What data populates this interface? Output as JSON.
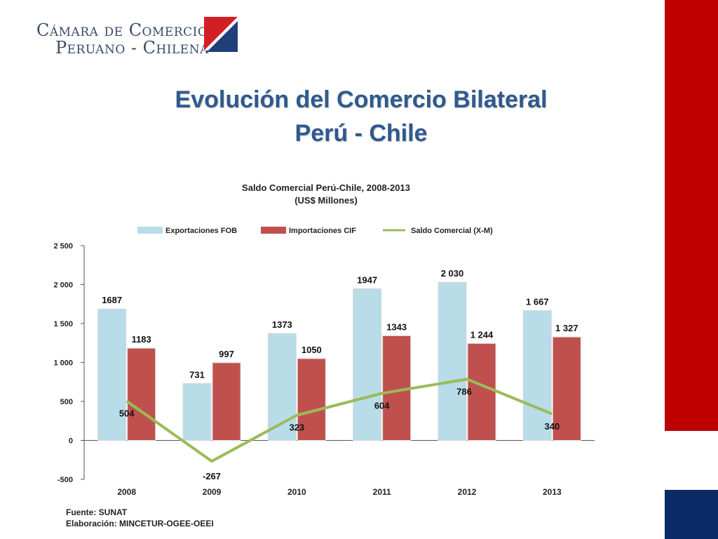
{
  "logo": {
    "line1": "Cámara de Comercio",
    "line2": "Peruano - Chilena",
    "colors": {
      "red": "#d21f26",
      "blue": "#1f3f7a"
    }
  },
  "slide": {
    "title_line1": "Evolución del Comercio Bilateral",
    "title_line2": "Perú - Chile"
  },
  "chart_data": {
    "type": "bar",
    "title": "Saldo Comercial Perú-Chile, 2008-2013",
    "subtitle": "(US$ Millones)",
    "categories": [
      "2008",
      "2009",
      "2010",
      "2011",
      "2012",
      "2013"
    ],
    "series": [
      {
        "name": "Exportaciones FOB",
        "type": "bar",
        "color": "#b8dce8",
        "values": [
          1687,
          731,
          1373,
          1947,
          2030,
          1667
        ],
        "labels": [
          "1687",
          "731",
          "1373",
          "1947",
          "2 030",
          "1 667"
        ]
      },
      {
        "name": "Importaciones CIF",
        "type": "bar",
        "color": "#c0504d",
        "values": [
          1183,
          997,
          1050,
          1343,
          1244,
          1327
        ],
        "labels": [
          "1183",
          "997",
          "1050",
          "1343",
          "1 244",
          "1 327"
        ]
      },
      {
        "name": "Saldo Comercial (X-M)",
        "type": "line",
        "color": "#9bbb59",
        "values": [
          504,
          -267,
          323,
          604,
          786,
          340
        ],
        "labels": [
          "504",
          "-267",
          "323",
          "604",
          "786",
          "340"
        ]
      }
    ],
    "yticks": [
      -500,
      0,
      500,
      1000,
      1500,
      2000,
      2500
    ],
    "ytick_labels": [
      "-500",
      "0",
      "500",
      "1 000",
      "1 500",
      "2 000",
      "2 500"
    ],
    "ylim": [
      -500,
      2500
    ],
    "legend": "top",
    "grid": false
  },
  "footer": {
    "source": "Fuente: SUNAT",
    "elaboration": "Elaboración: MINCETUR-OGEE-OEEI"
  }
}
